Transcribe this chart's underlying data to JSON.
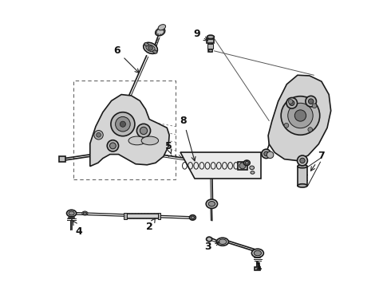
{
  "bg_color": "#ffffff",
  "line_color": "#1a1a1a",
  "fig_width": 4.9,
  "fig_height": 3.6,
  "dpi": 100,
  "label_fontsize": 9
}
